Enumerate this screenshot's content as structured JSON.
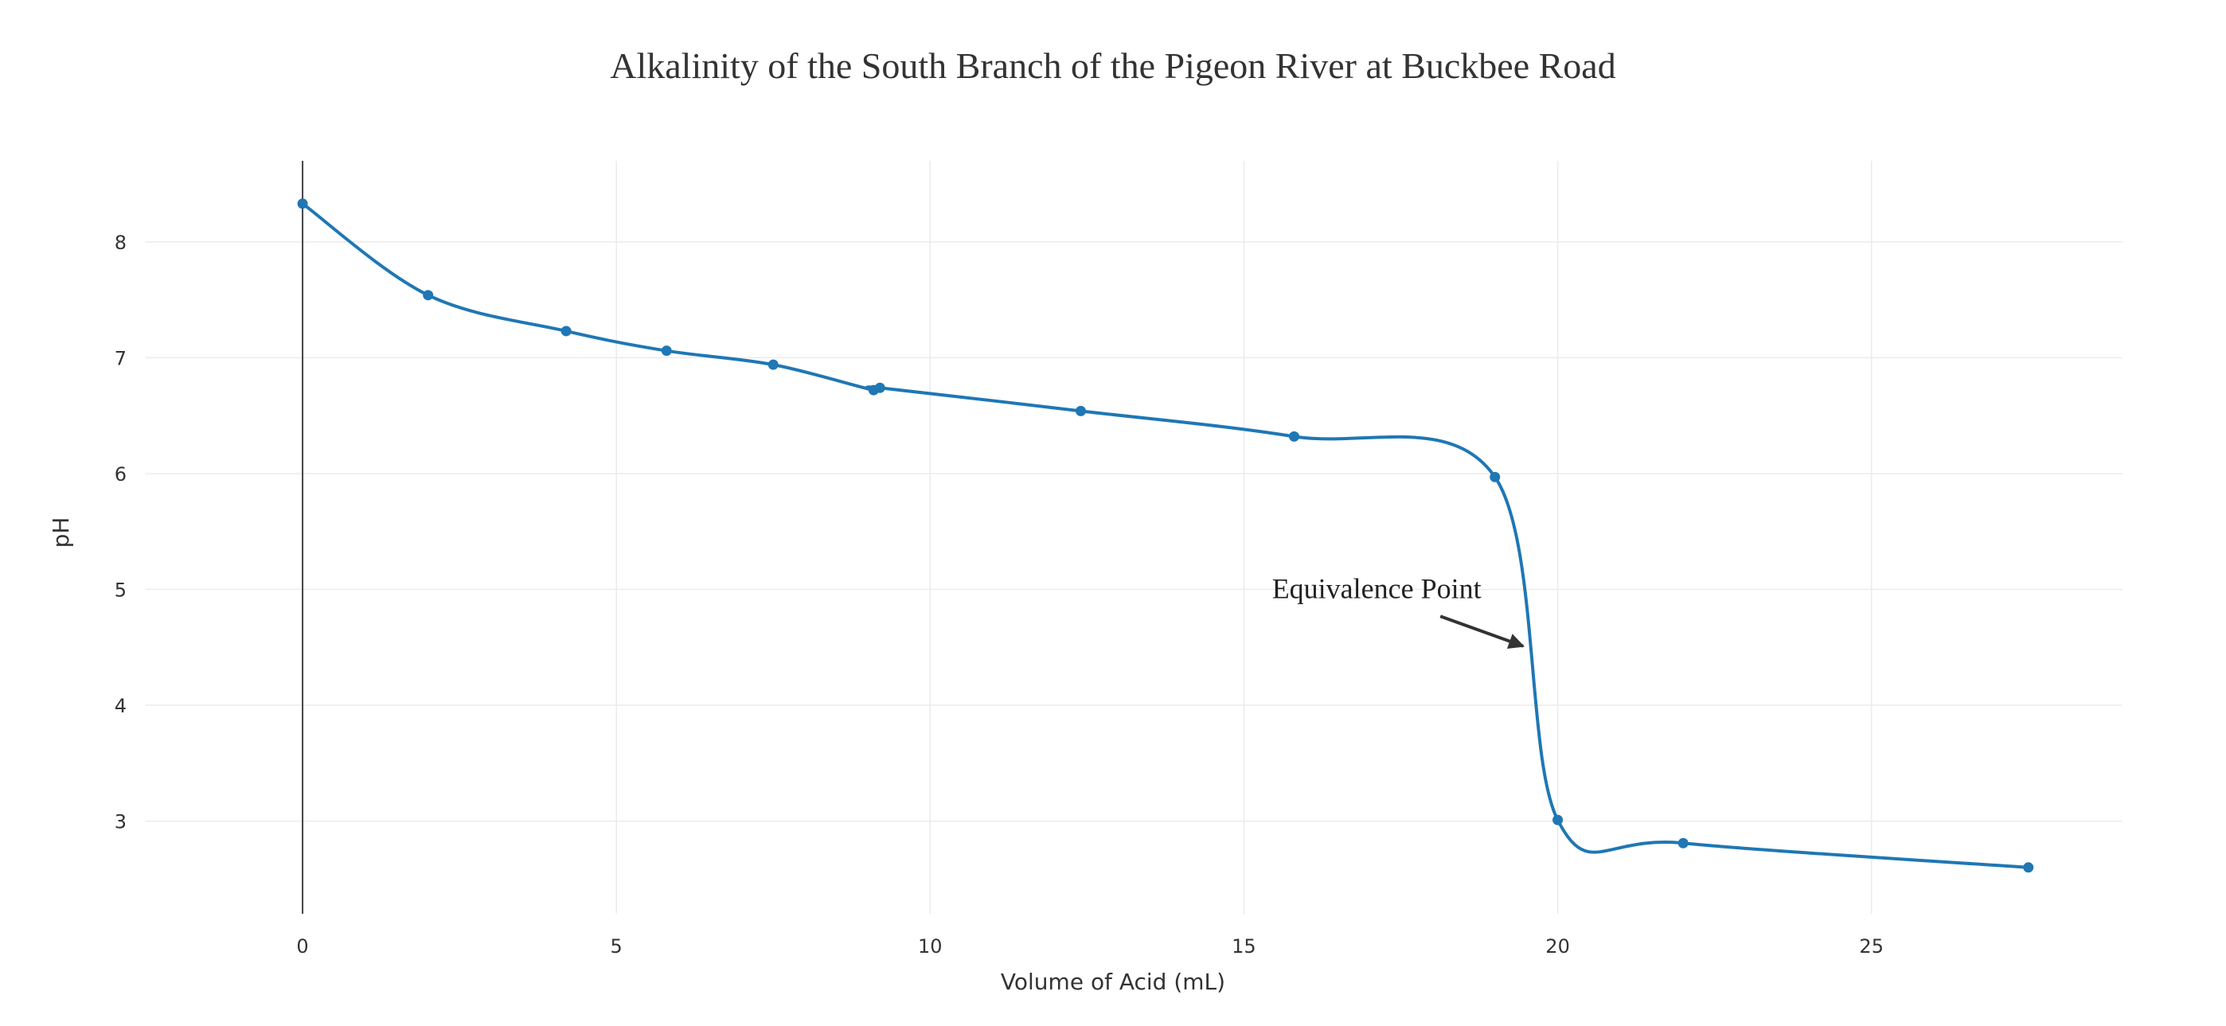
{
  "colors": {
    "series": "#1f77b4",
    "text": "#333333",
    "grid": "#ebebeb",
    "annotation_arrow": "#333333"
  },
  "chart_data": {
    "type": "line",
    "mode": "lines+markers",
    "line_shape": "spline",
    "title": "Alkalinity of the South Branch of the Pigeon River at Buckbee Road",
    "xlabel": "Volume of Acid (mL)",
    "ylabel": "pH",
    "xlim": [
      -2.5,
      29
    ],
    "ylim": [
      2.2,
      8.7
    ],
    "x_ticks": [
      0,
      5,
      10,
      15,
      20,
      25
    ],
    "y_ticks": [
      3,
      4,
      5,
      6,
      7,
      8
    ],
    "grid": true,
    "legend": false,
    "series": [
      {
        "x": [
          0,
          2.0,
          4.2,
          5.8,
          7.5,
          9.1,
          9.2,
          12.4,
          15.8,
          19.0,
          20.0,
          22.0,
          27.5
        ],
        "y": [
          8.33,
          7.54,
          7.23,
          7.06,
          6.94,
          6.72,
          6.74,
          6.54,
          6.32,
          5.97,
          3.01,
          2.81,
          2.6
        ]
      }
    ],
    "annotations": [
      {
        "text": "Equivalence Point",
        "point": [
          19.5,
          4.5
        ]
      }
    ]
  }
}
